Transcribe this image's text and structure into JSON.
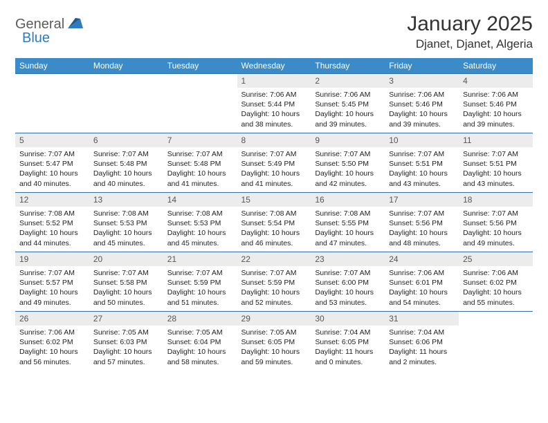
{
  "logo": {
    "text1": "General",
    "text2": "Blue"
  },
  "title": "January 2025",
  "location": "Djanet, Djanet, Algeria",
  "colors": {
    "header_bg": "#3b8bc9",
    "header_text": "#ffffff",
    "row_border": "#2f6fa8",
    "daynum_bg": "#ececec",
    "logo_gray": "#5b5b5b",
    "logo_blue": "#2f7bbf",
    "page_bg": "#ffffff",
    "body_text": "#222222"
  },
  "typography": {
    "title_fontsize": 30,
    "location_fontsize": 17,
    "dayheader_fontsize": 12,
    "daynum_fontsize": 12,
    "daytext_fontsize": 10.5
  },
  "dayHeaders": [
    "Sunday",
    "Monday",
    "Tuesday",
    "Wednesday",
    "Thursday",
    "Friday",
    "Saturday"
  ],
  "weeks": [
    [
      null,
      null,
      null,
      {
        "n": "1",
        "sr": "7:06 AM",
        "ss": "5:44 PM",
        "dl": "10 hours and 38 minutes."
      },
      {
        "n": "2",
        "sr": "7:06 AM",
        "ss": "5:45 PM",
        "dl": "10 hours and 39 minutes."
      },
      {
        "n": "3",
        "sr": "7:06 AM",
        "ss": "5:46 PM",
        "dl": "10 hours and 39 minutes."
      },
      {
        "n": "4",
        "sr": "7:06 AM",
        "ss": "5:46 PM",
        "dl": "10 hours and 39 minutes."
      }
    ],
    [
      {
        "n": "5",
        "sr": "7:07 AM",
        "ss": "5:47 PM",
        "dl": "10 hours and 40 minutes."
      },
      {
        "n": "6",
        "sr": "7:07 AM",
        "ss": "5:48 PM",
        "dl": "10 hours and 40 minutes."
      },
      {
        "n": "7",
        "sr": "7:07 AM",
        "ss": "5:48 PM",
        "dl": "10 hours and 41 minutes."
      },
      {
        "n": "8",
        "sr": "7:07 AM",
        "ss": "5:49 PM",
        "dl": "10 hours and 41 minutes."
      },
      {
        "n": "9",
        "sr": "7:07 AM",
        "ss": "5:50 PM",
        "dl": "10 hours and 42 minutes."
      },
      {
        "n": "10",
        "sr": "7:07 AM",
        "ss": "5:51 PM",
        "dl": "10 hours and 43 minutes."
      },
      {
        "n": "11",
        "sr": "7:07 AM",
        "ss": "5:51 PM",
        "dl": "10 hours and 43 minutes."
      }
    ],
    [
      {
        "n": "12",
        "sr": "7:08 AM",
        "ss": "5:52 PM",
        "dl": "10 hours and 44 minutes."
      },
      {
        "n": "13",
        "sr": "7:08 AM",
        "ss": "5:53 PM",
        "dl": "10 hours and 45 minutes."
      },
      {
        "n": "14",
        "sr": "7:08 AM",
        "ss": "5:53 PM",
        "dl": "10 hours and 45 minutes."
      },
      {
        "n": "15",
        "sr": "7:08 AM",
        "ss": "5:54 PM",
        "dl": "10 hours and 46 minutes."
      },
      {
        "n": "16",
        "sr": "7:08 AM",
        "ss": "5:55 PM",
        "dl": "10 hours and 47 minutes."
      },
      {
        "n": "17",
        "sr": "7:07 AM",
        "ss": "5:56 PM",
        "dl": "10 hours and 48 minutes."
      },
      {
        "n": "18",
        "sr": "7:07 AM",
        "ss": "5:56 PM",
        "dl": "10 hours and 49 minutes."
      }
    ],
    [
      {
        "n": "19",
        "sr": "7:07 AM",
        "ss": "5:57 PM",
        "dl": "10 hours and 49 minutes."
      },
      {
        "n": "20",
        "sr": "7:07 AM",
        "ss": "5:58 PM",
        "dl": "10 hours and 50 minutes."
      },
      {
        "n": "21",
        "sr": "7:07 AM",
        "ss": "5:59 PM",
        "dl": "10 hours and 51 minutes."
      },
      {
        "n": "22",
        "sr": "7:07 AM",
        "ss": "5:59 PM",
        "dl": "10 hours and 52 minutes."
      },
      {
        "n": "23",
        "sr": "7:07 AM",
        "ss": "6:00 PM",
        "dl": "10 hours and 53 minutes."
      },
      {
        "n": "24",
        "sr": "7:06 AM",
        "ss": "6:01 PM",
        "dl": "10 hours and 54 minutes."
      },
      {
        "n": "25",
        "sr": "7:06 AM",
        "ss": "6:02 PM",
        "dl": "10 hours and 55 minutes."
      }
    ],
    [
      {
        "n": "26",
        "sr": "7:06 AM",
        "ss": "6:02 PM",
        "dl": "10 hours and 56 minutes."
      },
      {
        "n": "27",
        "sr": "7:05 AM",
        "ss": "6:03 PM",
        "dl": "10 hours and 57 minutes."
      },
      {
        "n": "28",
        "sr": "7:05 AM",
        "ss": "6:04 PM",
        "dl": "10 hours and 58 minutes."
      },
      {
        "n": "29",
        "sr": "7:05 AM",
        "ss": "6:05 PM",
        "dl": "10 hours and 59 minutes."
      },
      {
        "n": "30",
        "sr": "7:04 AM",
        "ss": "6:05 PM",
        "dl": "11 hours and 0 minutes."
      },
      {
        "n": "31",
        "sr": "7:04 AM",
        "ss": "6:06 PM",
        "dl": "11 hours and 2 minutes."
      },
      null
    ]
  ],
  "labels": {
    "sunrise": "Sunrise:",
    "sunset": "Sunset:",
    "daylight": "Daylight:"
  }
}
